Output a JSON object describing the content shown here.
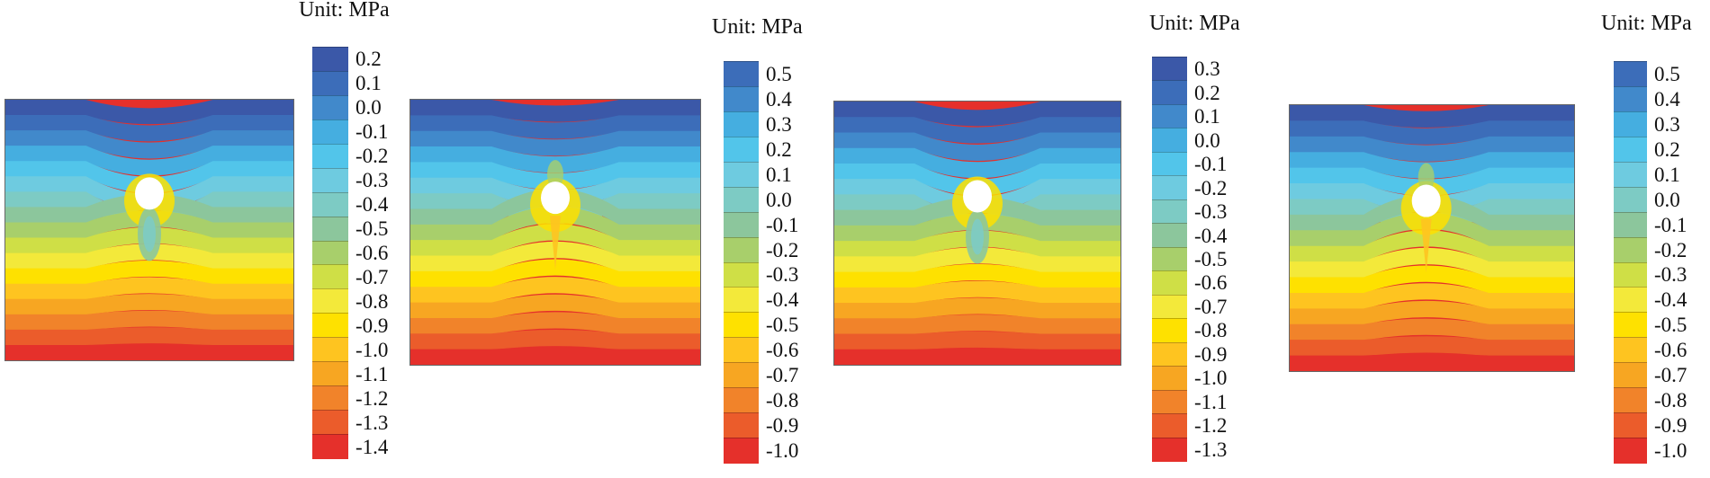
{
  "colors": {
    "palette": [
      "#3b58a8",
      "#3c6db9",
      "#4189cb",
      "#45aee0",
      "#52c5ea",
      "#6ecbe0",
      "#7dcbc4",
      "#8cc69c",
      "#a8cf6b",
      "#cfdf46",
      "#f3e93a",
      "#fee100",
      "#fec420",
      "#f7a622",
      "#f1832a",
      "#eb5c2b",
      "#e5302b"
    ],
    "hole": "#ffffff"
  },
  "panels": [
    {
      "unit_label": "Unit: MPa",
      "ticks": [
        "0.2",
        "0.1",
        "0.0",
        "-0.1",
        "-0.2",
        "-0.3",
        "-0.4",
        "-0.5",
        "-0.6",
        "-0.7",
        "-0.8",
        "-0.9",
        "-1.0",
        "-1.1",
        "-1.2",
        "-1.3",
        "-1.4"
      ]
    },
    {
      "unit_label": "Unit: MPa",
      "ticks": [
        "0.5",
        "0.4",
        "0.3",
        "0.2",
        "0.1",
        "0.0",
        "-0.1",
        "-0.2",
        "-0.3",
        "-0.4",
        "-0.5",
        "-0.6",
        "-0.7",
        "-0.8",
        "-0.9",
        "-1.0"
      ]
    },
    {
      "unit_label": "Unit: MPa",
      "ticks": [
        "0.3",
        "0.2",
        "0.1",
        "0.0",
        "-0.1",
        "-0.2",
        "-0.3",
        "-0.4",
        "-0.5",
        "-0.6",
        "-0.7",
        "-0.8",
        "-0.9",
        "-1.0",
        "-1.1",
        "-1.2",
        "-1.3"
      ]
    },
    {
      "unit_label": "Unit: MPa",
      "ticks": [
        "0.5",
        "0.4",
        "0.3",
        "0.2",
        "0.1",
        "0.0",
        "-0.1",
        "-0.2",
        "-0.3",
        "-0.4",
        "-0.5",
        "-0.6",
        "-0.7",
        "-0.8",
        "-0.9",
        "-1.0"
      ]
    }
  ]
}
